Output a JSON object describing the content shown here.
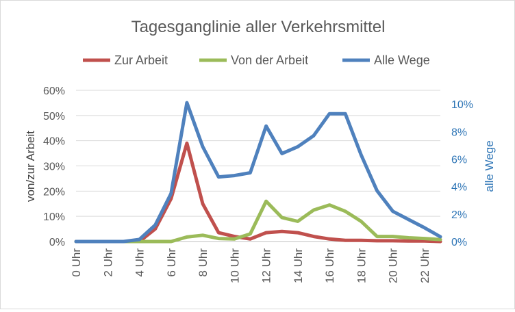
{
  "chart_data": {
    "type": "line",
    "title": "Tagesganglinie aller Verkehrsmittel",
    "categories": [
      "0 Uhr",
      "1 Uhr",
      "2 Uhr",
      "3 Uhr",
      "4 Uhr",
      "5 Uhr",
      "6 Uhr",
      "7 Uhr",
      "8 Uhr",
      "9 Uhr",
      "10 Uhr",
      "11 Uhr",
      "12 Uhr",
      "13 Uhr",
      "14 Uhr",
      "15 Uhr",
      "16 Uhr",
      "17 Uhr",
      "18 Uhr",
      "19 Uhr",
      "20 Uhr",
      "21 Uhr",
      "22 Uhr",
      "23 Uhr"
    ],
    "x_tick_labels": [
      "0 Uhr",
      "2 Uhr",
      "4 Uhr",
      "6 Uhr",
      "8 Uhr",
      "10 Uhr",
      "12 Uhr",
      "14 Uhr",
      "16 Uhr",
      "18 Uhr",
      "20 Uhr",
      "22 Uhr"
    ],
    "ylabel": "von/zur Arbeit",
    "ylim": [
      0,
      0.6
    ],
    "yticks": [
      "0%",
      "10%",
      "20%",
      "30%",
      "40%",
      "50%",
      "60%"
    ],
    "y2label": "alle Wege",
    "y2lim": [
      0,
      0.11
    ],
    "y2ticks": [
      "0%",
      "2%",
      "4%",
      "6%",
      "8%",
      "10%"
    ],
    "legend_position": "top",
    "grid": "horizontal",
    "series": [
      {
        "name": "Zur Arbeit",
        "axis": "left",
        "color": "#c0504d",
        "values": [
          0,
          0,
          0,
          0,
          0,
          0.05,
          0.17,
          0.39,
          0.15,
          0.035,
          0.02,
          0.01,
          0.035,
          0.04,
          0.035,
          0.02,
          0.01,
          0.005,
          0.005,
          0.003,
          0.003,
          0.002,
          0.002,
          0
        ]
      },
      {
        "name": "Von der Arbeit",
        "axis": "left",
        "color": "#9bbb59",
        "values": [
          0,
          0,
          0,
          0,
          0,
          0,
          0,
          0.018,
          0.025,
          0.012,
          0.01,
          0.03,
          0.16,
          0.095,
          0.08,
          0.125,
          0.145,
          0.12,
          0.08,
          0.02,
          0.02,
          0.015,
          0.012,
          0.008
        ]
      },
      {
        "name": "Alle Wege",
        "axis": "right",
        "color": "#4f81bd",
        "values": [
          0,
          0,
          0,
          0,
          0.0015,
          0.012,
          0.035,
          0.101,
          0.069,
          0.047,
          0.048,
          0.05,
          0.084,
          0.064,
          0.069,
          0.077,
          0.093,
          0.093,
          0.063,
          0.037,
          0.022,
          0.016,
          0.01,
          0.0035
        ]
      }
    ]
  }
}
